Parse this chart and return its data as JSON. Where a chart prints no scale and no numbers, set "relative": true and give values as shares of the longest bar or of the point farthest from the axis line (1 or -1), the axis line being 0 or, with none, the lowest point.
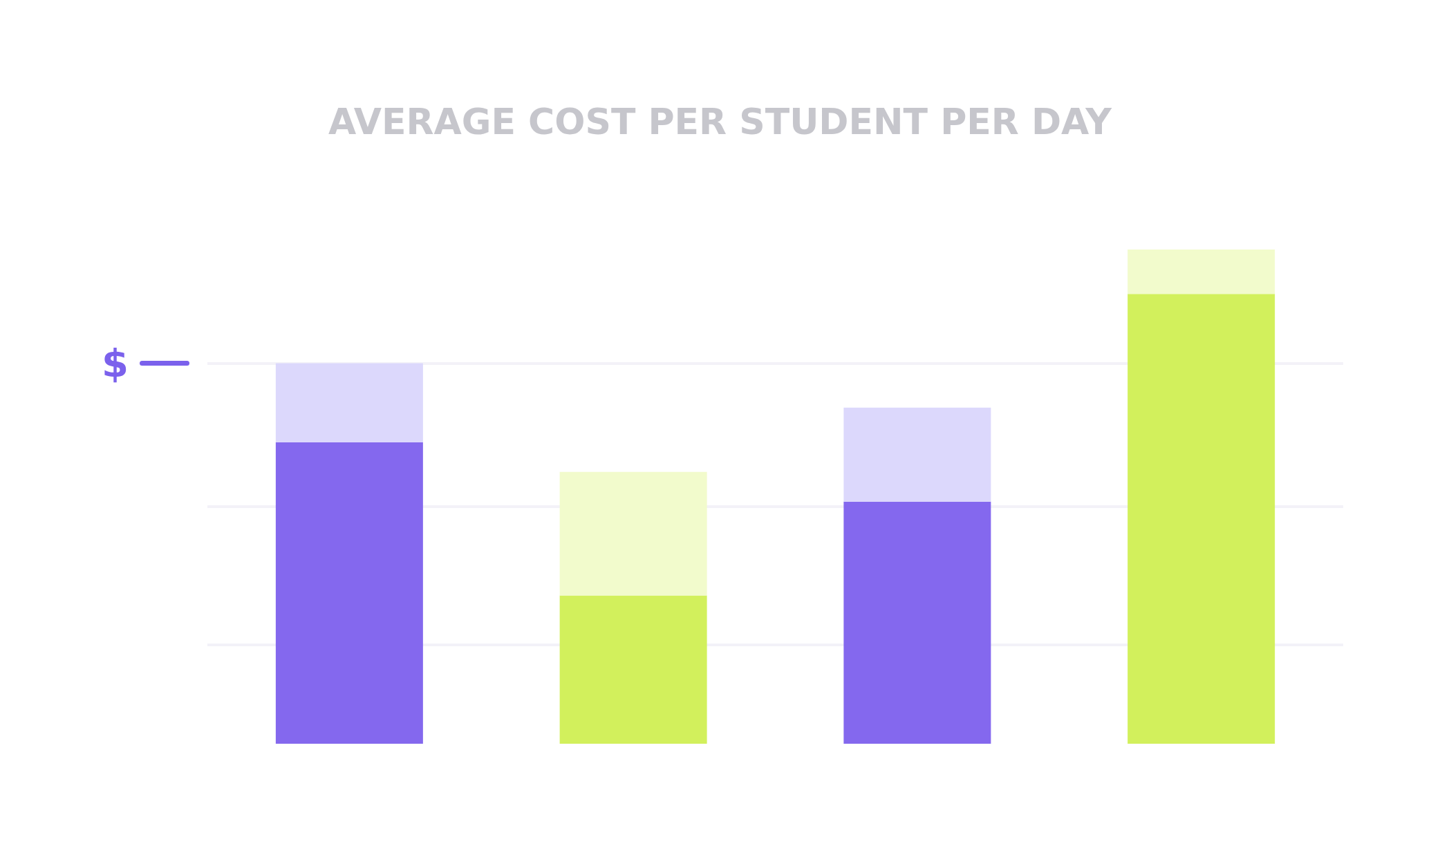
{
  "chart_data": {
    "type": "bar",
    "title": "AVERAGE COST PER STUDENT PER DAY",
    "relative": true,
    "stacked": true,
    "categories": [
      null,
      null,
      null,
      null
    ],
    "series": [
      {
        "colors": [
          "#8468ee",
          "#d2f05c",
          "#8468ee",
          "#d2f05c"
        ],
        "values": [
          0.61,
          0.3,
          0.49,
          0.91
        ]
      },
      {
        "colors": [
          "#dcd8fc",
          "#f2fbcc",
          "#dcd8fc",
          "#f2fbcc"
        ],
        "values": [
          0.16,
          0.25,
          0.19,
          0.09
        ]
      }
    ],
    "ref_lines": [
      {
        "axis": "y",
        "value": 0.77,
        "label": "$",
        "color": "#f3f2f8"
      },
      {
        "axis": "y",
        "value": 0.48,
        "color": "#f3f2f8"
      },
      {
        "axis": "y",
        "value": 0.2,
        "color": "#f3f2f8"
      }
    ]
  }
}
